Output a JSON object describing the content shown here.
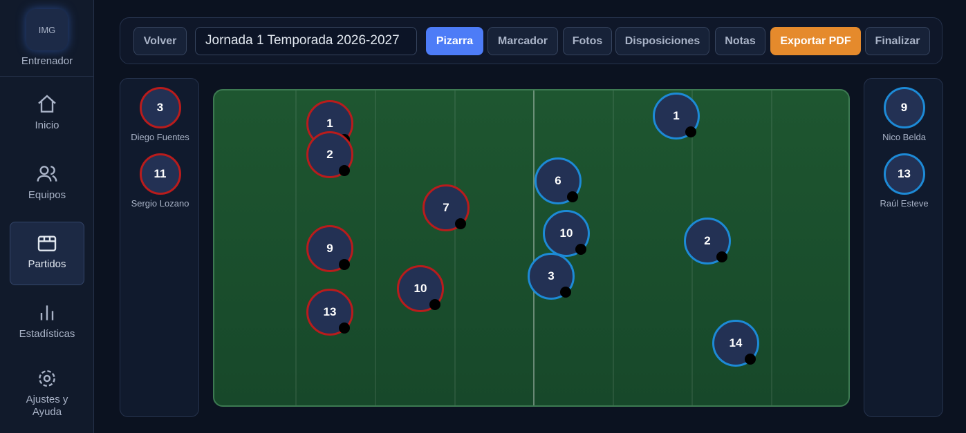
{
  "sidebar": {
    "avatar": "IMG",
    "role": "Entrenador",
    "nav": [
      "Inicio",
      "Equipos",
      "Partidos",
      "Estadísticas",
      "Ajustes y Ayuda"
    ]
  },
  "toolbar": {
    "back": "Volver",
    "match_title": "Jornada 1 Temporada 2026-2027",
    "tabs": [
      "Pizarra",
      "Marcador",
      "Fotos",
      "Disposiciones",
      "Notas",
      "Exportar PDF",
      "Finalizar"
    ]
  },
  "bench_left": [
    {
      "number": "3",
      "name": "Diego Fuentes"
    },
    {
      "number": "11",
      "name": "Sergio Lozano"
    }
  ],
  "bench_right": [
    {
      "number": "9",
      "name": "Nico Belda"
    },
    {
      "number": "13",
      "name": "Raúl Esteve"
    }
  ],
  "field": {
    "home": [
      "1",
      "2",
      "7",
      "9",
      "10",
      "13"
    ],
    "away": [
      "1",
      "6",
      "10",
      "3",
      "2",
      "14"
    ]
  }
}
